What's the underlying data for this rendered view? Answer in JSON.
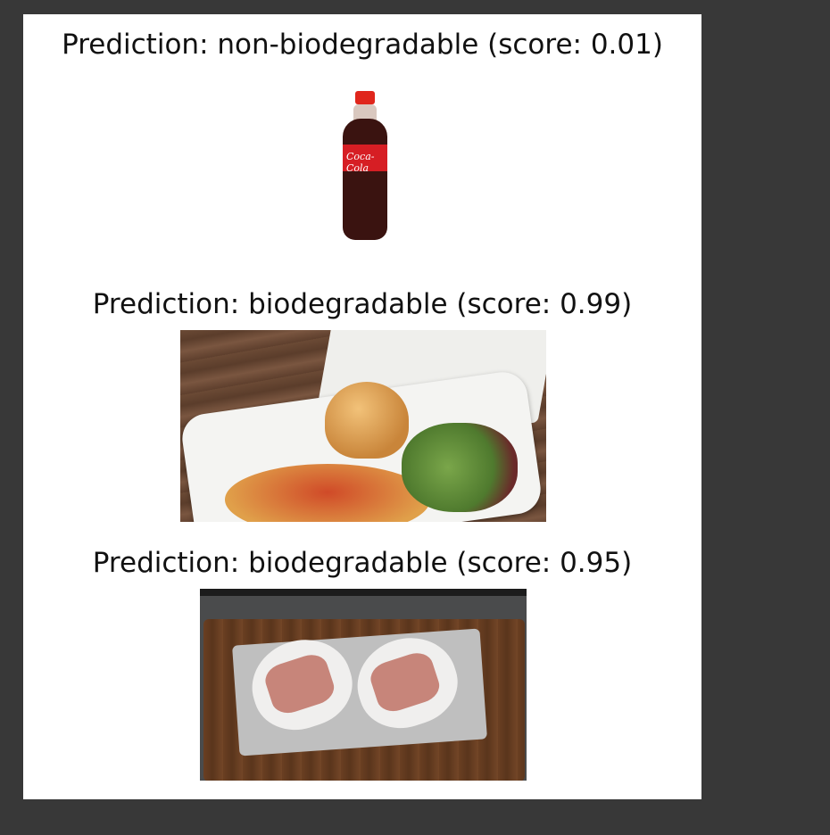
{
  "predictions": [
    {
      "label": "non-biodegradable",
      "score": "0.01",
      "title": "Prediction: non-biodegradable (score: 0.01)"
    },
    {
      "label": "biodegradable",
      "score": "0.99",
      "title": "Prediction: biodegradable (score: 0.99)"
    },
    {
      "label": "biodegradable",
      "score": "0.95",
      "title": "Prediction: biodegradable (score: 0.95)"
    }
  ],
  "bottle_label_text": "Coca-Cola",
  "colors": {
    "page_background": "#383838",
    "figure_background": "#ffffff",
    "text": "#111111"
  }
}
